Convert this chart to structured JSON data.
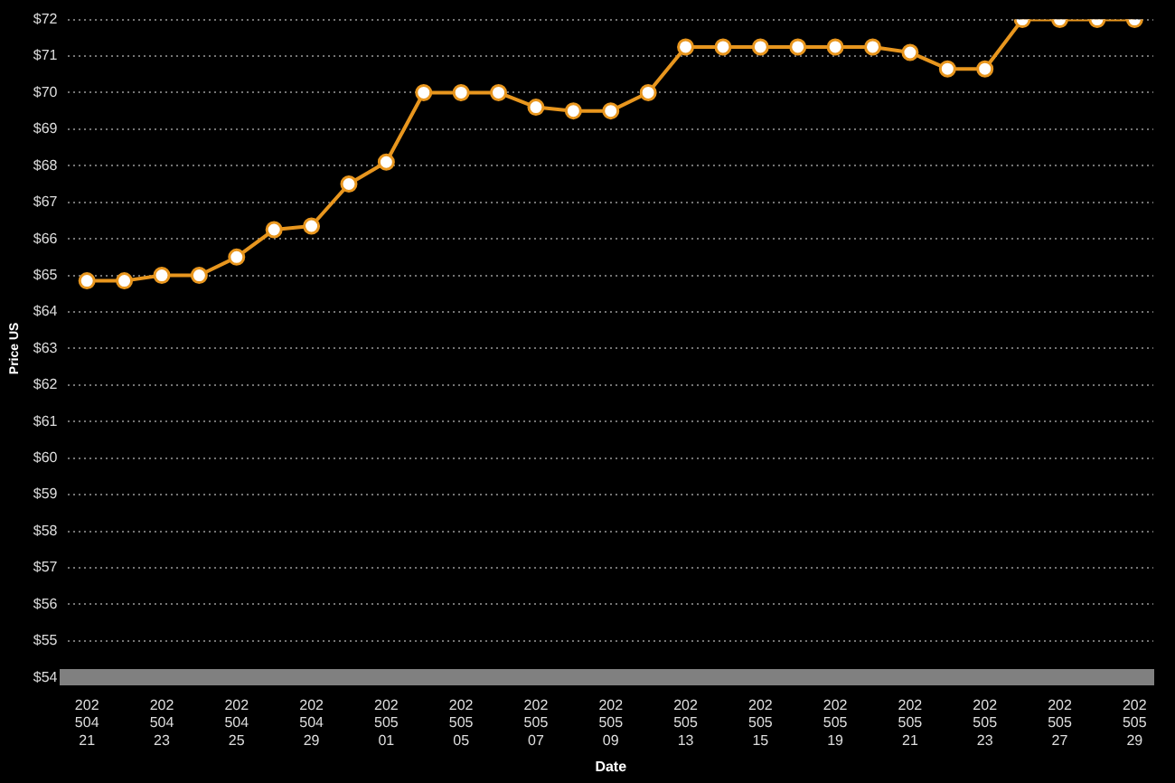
{
  "chart_data": {
    "type": "line",
    "xlabel": "Date",
    "ylabel": "Price US",
    "categories": [
      "20250421",
      null,
      "20250423",
      null,
      "20250425",
      null,
      "20250429",
      null,
      "20250501",
      null,
      "20250505",
      null,
      "20250507",
      null,
      "20250509",
      null,
      "20250513",
      null,
      "20250515",
      null,
      "20250519",
      null,
      "20250521",
      null,
      "20250523",
      null,
      "20250527",
      null,
      "20250529"
    ],
    "series": [
      {
        "color": "#e8961e",
        "values": [
          64.85,
          64.85,
          65.0,
          65.0,
          65.5,
          66.25,
          66.35,
          67.5,
          68.1,
          70.0,
          70.0,
          70.0,
          69.6,
          69.5,
          69.5,
          70.0,
          71.25,
          71.25,
          71.25,
          71.25,
          71.25,
          71.25,
          71.1,
          70.65,
          70.65,
          72.0,
          72.0,
          72.0,
          72.0
        ]
      }
    ],
    "ylim": [
      54,
      72
    ],
    "yticks": [
      {
        "value": 54,
        "label": "$54"
      },
      {
        "value": 55,
        "label": "$55"
      },
      {
        "value": 56,
        "label": "$56"
      },
      {
        "value": 57,
        "label": "$57"
      },
      {
        "value": 58,
        "label": "$58"
      },
      {
        "value": 59,
        "label": "$59"
      },
      {
        "value": 60,
        "label": "$60"
      },
      {
        "value": 61,
        "label": "$61"
      },
      {
        "value": 62,
        "label": "$62"
      },
      {
        "value": 63,
        "label": "$63"
      },
      {
        "value": 64,
        "label": "$64"
      },
      {
        "value": 65,
        "label": "$65"
      },
      {
        "value": 66,
        "label": "$66"
      },
      {
        "value": 67,
        "label": "$67"
      },
      {
        "value": 68,
        "label": "$68"
      },
      {
        "value": 69,
        "label": "$69"
      },
      {
        "value": 70,
        "label": "$70"
      },
      {
        "value": 71,
        "label": "$71"
      },
      {
        "value": 72,
        "label": "$72"
      }
    ],
    "grid": "y",
    "marker": "circle",
    "line_style": "solid",
    "legend": false
  }
}
